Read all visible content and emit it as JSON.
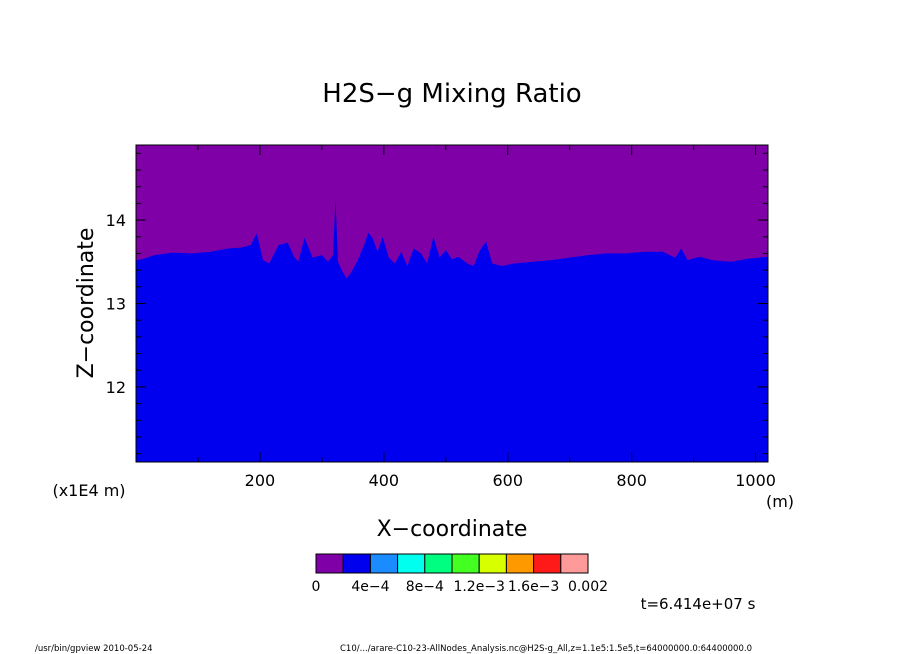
{
  "chart_data": {
    "type": "heatmap",
    "title": "H2S−g Mixing Ratio",
    "xlabel": "X−coordinate",
    "ylabel": "Z−coordinate",
    "x_unit": "(m)",
    "y_scale_note": "(x1E4 m)",
    "xlim": [
      0,
      1020
    ],
    "ylim": [
      11.1,
      14.9
    ],
    "x_ticks": [
      200,
      400,
      600,
      800,
      1000
    ],
    "x_tick_labels": [
      "200",
      "400",
      "600",
      "800",
      "1000"
    ],
    "y_ticks": [
      12,
      13,
      14
    ],
    "y_tick_labels": [
      "12",
      "13",
      "14"
    ],
    "regions": [
      {
        "level": "0 – 2e-4",
        "color": "#7f00a7",
        "where": "above boundary"
      },
      {
        "level": "2e-4 – 4e-4",
        "color": "#0000ee",
        "where": "below boundary"
      }
    ],
    "boundary_x": [
      0,
      10,
      30,
      60,
      90,
      120,
      150,
      170,
      185,
      195,
      205,
      215,
      230,
      245,
      255,
      262,
      272,
      285,
      300,
      310,
      318,
      322,
      326,
      332,
      340,
      348,
      358,
      368,
      375,
      382,
      390,
      398,
      408,
      418,
      428,
      438,
      448,
      460,
      470,
      480,
      490,
      500,
      510,
      520,
      535,
      545,
      555,
      565,
      575,
      590,
      610,
      640,
      670,
      700,
      730,
      760,
      790,
      820,
      850,
      870,
      880,
      890,
      910,
      930,
      960,
      990,
      1020
    ],
    "boundary_z": [
      13.52,
      13.53,
      13.58,
      13.61,
      13.6,
      13.62,
      13.66,
      13.67,
      13.7,
      13.84,
      13.52,
      13.48,
      13.7,
      13.73,
      13.56,
      13.5,
      13.79,
      13.55,
      13.58,
      13.5,
      13.58,
      14.25,
      13.5,
      13.4,
      13.3,
      13.38,
      13.52,
      13.7,
      13.85,
      13.78,
      13.62,
      13.8,
      13.55,
      13.48,
      13.62,
      13.45,
      13.66,
      13.6,
      13.48,
      13.8,
      13.55,
      13.64,
      13.53,
      13.56,
      13.48,
      13.45,
      13.64,
      13.74,
      13.48,
      13.45,
      13.48,
      13.5,
      13.52,
      13.55,
      13.58,
      13.6,
      13.6,
      13.62,
      13.62,
      13.55,
      13.66,
      13.52,
      13.56,
      13.52,
      13.5,
      13.54,
      13.56
    ],
    "colorbar": {
      "colors": [
        "#7f00a7",
        "#0000ee",
        "#1a8cff",
        "#00ffee",
        "#00ff80",
        "#44ff22",
        "#d8ff00",
        "#ff9900",
        "#ff1a1a",
        "#ff9a9a"
      ],
      "labels": [
        "0",
        "4e−4",
        "8e−4",
        "1.2e−3",
        "1.6e−3",
        "0.002"
      ]
    }
  },
  "annotations": {
    "time": "t=6.414e+07 s",
    "footer_left": "/usr/bin/gpview  2010-05-24",
    "footer_right": "C10/.../arare-C10-23-AllNodes_Analysis.nc@H2S-g_All,z=1.1e5:1.5e5,t=64000000.0:64400000.0"
  }
}
